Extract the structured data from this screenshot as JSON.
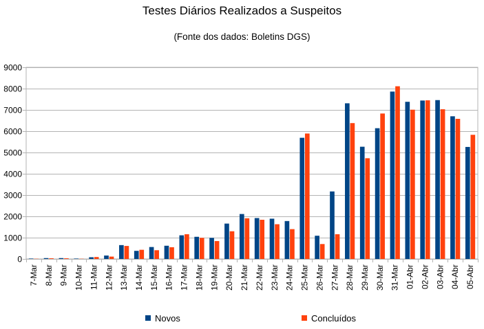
{
  "chart_data": {
    "type": "bar",
    "title": "Testes Diários Realizados a Suspeitos",
    "subtitle": "(Fonte dos dados: Boletins DGS)",
    "xlabel": "",
    "ylabel": "",
    "ylim": [
      0,
      9000
    ],
    "yticks": [
      "0",
      "1000",
      "2000",
      "3000",
      "4000",
      "5000",
      "6000",
      "7000",
      "8000",
      "9000"
    ],
    "grid": true,
    "legend": "bottom",
    "categories": [
      "7-Mar",
      "8-Mar",
      "9-Mar",
      "10-Mar",
      "11-Mar",
      "12-Mar",
      "13-Mar",
      "14-Mar",
      "15-Mar",
      "16-Mar",
      "17-Mar",
      "18-Mar",
      "19-Mar",
      "20-Mar",
      "21-Mar",
      "22-Mar",
      "23-Mar",
      "24-Mar",
      "25-Mar",
      "26-Mar",
      "27-Mar",
      "28-Mar",
      "29-Mar",
      "30-Mar",
      "31-Mar",
      "01-Abr",
      "02-Abr",
      "03-Abr",
      "04-Abr",
      "05-Abr"
    ],
    "series": [
      {
        "name": "Novos",
        "color": "#004586",
        "values": [
          20,
          40,
          40,
          20,
          80,
          160,
          650,
          380,
          560,
          620,
          1110,
          1040,
          990,
          1660,
          2110,
          1920,
          1890,
          1780,
          5690,
          1090,
          3170,
          7310,
          5270,
          6140,
          7860,
          7380,
          7440,
          7460,
          6700,
          5260
        ]
      },
      {
        "name": "Concluídos",
        "color": "#ff420e",
        "values": [
          10,
          30,
          30,
          10,
          90,
          110,
          610,
          430,
          410,
          550,
          1160,
          990,
          840,
          1300,
          1910,
          1840,
          1630,
          1400,
          5890,
          700,
          1160,
          6380,
          4730,
          6830,
          8110,
          7010,
          7450,
          7030,
          6580,
          5830
        ]
      }
    ]
  }
}
